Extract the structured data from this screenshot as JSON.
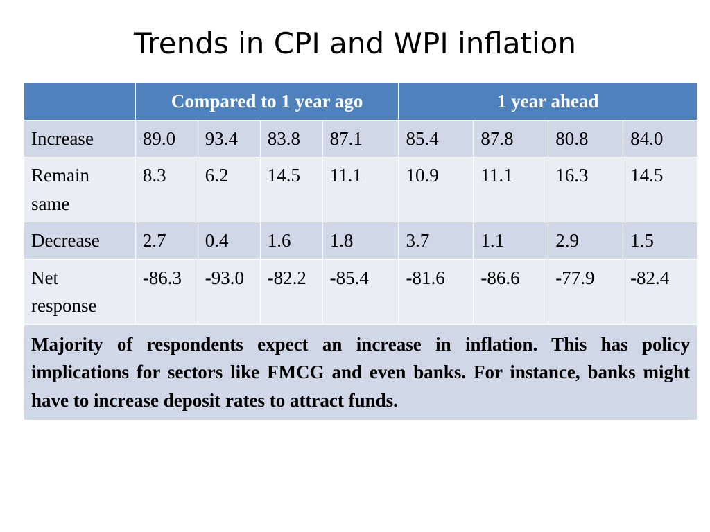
{
  "title": "Trends in CPI and WPI inflation",
  "header": {
    "blank": "",
    "group1": "Compared to 1 year ago",
    "group2": "1 year ahead"
  },
  "rows": [
    {
      "label": "Increase",
      "values": [
        "89.0",
        "93.4",
        "83.8",
        "87.1",
        "85.4",
        "87.8",
        "80.8",
        "84.0"
      ]
    },
    {
      "label": "Remain same",
      "values": [
        "8.3",
        "6.2",
        "14.5",
        "11.1",
        "10.9",
        "11.1",
        "16.3",
        "14.5"
      ]
    },
    {
      "label": "Decrease",
      "values": [
        "2.7",
        "0.4",
        "1.6",
        "1.8",
        "3.7",
        "1.1",
        "2.9",
        "1.5"
      ]
    },
    {
      "label": "Net response",
      "values": [
        "-86.3",
        "-93.0",
        "-82.2",
        "-85.4",
        "-81.6",
        "-86.6",
        "-77.9",
        "-82.4"
      ]
    }
  ],
  "note": "Majority of respondents expect an increase in inflation. This has policy implications for sectors like FMCG and even banks. For instance, banks might have to increase deposit rates to attract funds.",
  "colors": {
    "header_bg": "#4f81bd",
    "row_dark": "#d0d8e8",
    "row_light": "#e9edf4"
  }
}
